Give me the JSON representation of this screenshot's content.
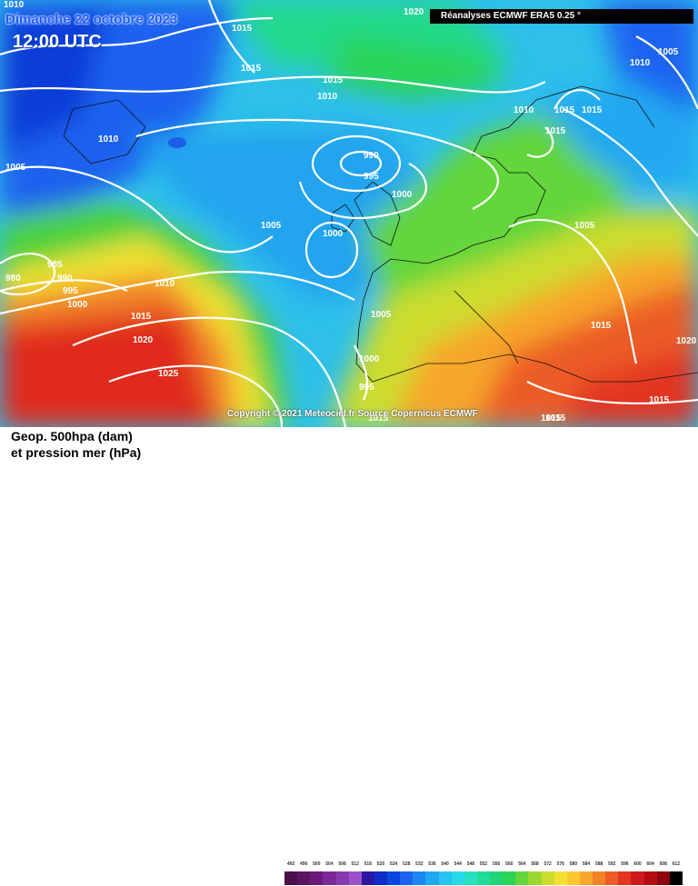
{
  "title": {
    "date": "Dimanche 22 octobre 2023",
    "time": "12:00 UTC"
  },
  "source": "Réanalyses ECMWF ERA5 0.25 °",
  "copyright": "Copyright © 2021 Meteociel.fr Source Copernicus ECMWF",
  "legend": {
    "line1": "Geop. 500hpa (dam)",
    "line2": "et pression mer (hPa)"
  },
  "scale_labels": [
    "492",
    "496",
    "500",
    "504",
    "508",
    "512",
    "516",
    "520",
    "524",
    "528",
    "532",
    "536",
    "540",
    "544",
    "548",
    "552",
    "556",
    "560",
    "564",
    "568",
    "572",
    "576",
    "580",
    "584",
    "588",
    "592",
    "596",
    "600",
    "604",
    "608",
    "612"
  ],
  "scale_colors": [
    "#4b0f4a",
    "#5b1560",
    "#6b1a7a",
    "#7a2a96",
    "#8a3ab0",
    "#9a52c8",
    "#2a16a0",
    "#0f2ec8",
    "#0a46e0",
    "#1c64f0",
    "#1e86f2",
    "#21a8f0",
    "#26c4f0",
    "#2ad9e8",
    "#26e0c0",
    "#22dc9a",
    "#20d676",
    "#2ad456",
    "#62d63a",
    "#9ad832",
    "#ccdc2e",
    "#f2e030",
    "#fbc830",
    "#f7a62c",
    "#f2822a",
    "#ec5c26",
    "#e23620",
    "#cf1a1a",
    "#b30d12",
    "#8c060c",
    "#000000"
  ],
  "isobars": [
    {
      "text": "1010",
      "cls": "nw"
    },
    {
      "text": "1015",
      "cls": "n1"
    },
    {
      "text": "1015",
      "cls": "n2"
    },
    {
      "text": "1020",
      "cls": "n3"
    },
    {
      "text": "1015",
      "cls": "ne"
    },
    {
      "text": "1010",
      "cls": "mid"
    },
    {
      "text": "1010",
      "cls": "ggl"
    },
    {
      "text": "1005",
      "cls": "w"
    },
    {
      "text": "990",
      "cls": "c1"
    },
    {
      "text": "995",
      "cls": "c2"
    },
    {
      "text": "1000",
      "cls": "c3"
    },
    {
      "text": "1000",
      "cls": "c4"
    },
    {
      "text": "1005",
      "cls": "c5"
    },
    {
      "text": "985",
      "cls": "sw1"
    },
    {
      "text": "980",
      "cls": "sw2"
    },
    {
      "text": "990",
      "cls": "sw3"
    },
    {
      "text": "995",
      "cls": "sw4"
    },
    {
      "text": "1000",
      "cls": "sw5"
    },
    {
      "text": "1010",
      "cls": "s1"
    },
    {
      "text": "1015",
      "cls": "s2"
    },
    {
      "text": "1020",
      "cls": "s3"
    },
    {
      "text": "1025",
      "cls": "s4"
    },
    {
      "text": "1005",
      "cls": "ib"
    },
    {
      "text": "1000",
      "cls": "ib2"
    },
    {
      "text": "995",
      "cls": "ib3"
    },
    {
      "text": "1010",
      "cls": "sc1"
    },
    {
      "text": "1015",
      "cls": "sc2"
    },
    {
      "text": "1015",
      "cls": "sc3"
    },
    {
      "text": "1015",
      "cls": "sc4"
    },
    {
      "text": "1005",
      "cls": "eu"
    },
    {
      "text": "1015",
      "cls": "ba"
    },
    {
      "text": "1015",
      "cls": "e1"
    },
    {
      "text": "1015",
      "cls": "e2"
    },
    {
      "text": "1020",
      "cls": "e3"
    },
    {
      "text": "1010",
      "cls": "ne2"
    },
    {
      "text": "1005",
      "cls": "ne3"
    },
    {
      "text": "1015",
      "cls": "m1"
    },
    {
      "text": "1015",
      "cls": "m2"
    }
  ]
}
